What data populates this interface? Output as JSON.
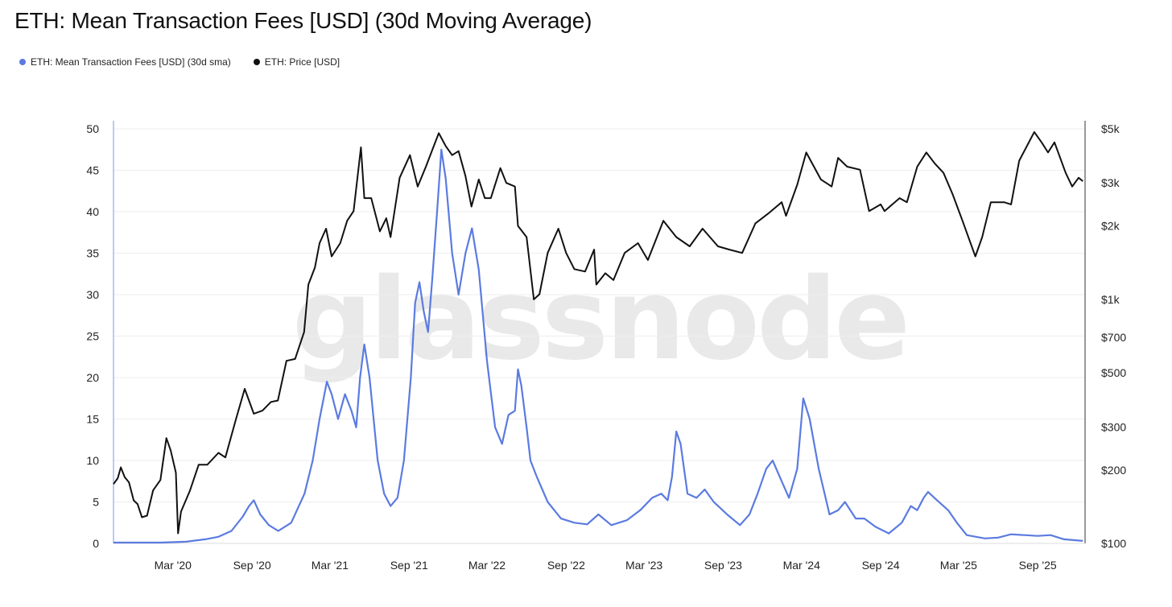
{
  "title": "ETH: Mean Transaction Fees [USD] (30d Moving Average)",
  "watermark": "glassnode",
  "legend": [
    {
      "label": "ETH: Mean Transaction Fees [USD] (30d sma)",
      "color": "#5b7be0"
    },
    {
      "label": "ETH: Price [USD]",
      "color": "#111111"
    }
  ],
  "chart_data": {
    "type": "line",
    "x_range": [
      "2019-10-15",
      "2025-12-20"
    ],
    "x_ticks": [
      {
        "date": "2020-03-01",
        "label": "Mar '20"
      },
      {
        "date": "2020-09-01",
        "label": "Sep '20"
      },
      {
        "date": "2021-03-01",
        "label": "Mar '21"
      },
      {
        "date": "2021-09-01",
        "label": "Sep '21"
      },
      {
        "date": "2022-03-01",
        "label": "Mar '22"
      },
      {
        "date": "2022-09-01",
        "label": "Sep '22"
      },
      {
        "date": "2023-03-01",
        "label": "Mar '23"
      },
      {
        "date": "2023-09-01",
        "label": "Sep '23"
      },
      {
        "date": "2024-03-01",
        "label": "Mar '24"
      },
      {
        "date": "2024-09-01",
        "label": "Sep '24"
      },
      {
        "date": "2025-03-01",
        "label": "Mar '25"
      },
      {
        "date": "2025-09-01",
        "label": "Sep '25"
      }
    ],
    "y_left": {
      "range": [
        0,
        50
      ],
      "ticks": [
        0,
        5,
        10,
        15,
        20,
        25,
        30,
        35,
        40,
        45,
        50
      ],
      "labels": [
        "0",
        "5",
        "10",
        "15",
        "20",
        "25",
        "30",
        "35",
        "40",
        "45",
        "50"
      ]
    },
    "y_right": {
      "scale": "log",
      "range": [
        100,
        5000
      ],
      "ticks": [
        100,
        200,
        300,
        500,
        700,
        1000,
        2000,
        3000,
        5000
      ],
      "labels": [
        "$100",
        "$200",
        "$300",
        "$500",
        "$700",
        "$1k",
        "$2k",
        "$3k",
        "$5k"
      ]
    },
    "grid": true,
    "legend_position": "top-left",
    "series": [
      {
        "name": "ETH: Mean Transaction Fees [USD] (30d sma)",
        "axis": "left",
        "color": "#5b7be0",
        "points": [
          [
            "2019-10-15",
            0.1
          ],
          [
            "2019-12-01",
            0.1
          ],
          [
            "2020-02-01",
            0.1
          ],
          [
            "2020-04-01",
            0.2
          ],
          [
            "2020-05-15",
            0.5
          ],
          [
            "2020-06-15",
            0.8
          ],
          [
            "2020-07-15",
            1.5
          ],
          [
            "2020-08-10",
            3.2
          ],
          [
            "2020-08-25",
            4.5
          ],
          [
            "2020-09-05",
            5.2
          ],
          [
            "2020-09-20",
            3.5
          ],
          [
            "2020-10-10",
            2.2
          ],
          [
            "2020-11-01",
            1.5
          ],
          [
            "2020-12-01",
            2.5
          ],
          [
            "2021-01-01",
            6.0
          ],
          [
            "2021-01-20",
            10.0
          ],
          [
            "2021-02-05",
            15.0
          ],
          [
            "2021-02-22",
            19.5
          ],
          [
            "2021-03-05",
            18.0
          ],
          [
            "2021-03-20",
            15.0
          ],
          [
            "2021-04-05",
            18.0
          ],
          [
            "2021-04-20",
            16.0
          ],
          [
            "2021-05-01",
            14.0
          ],
          [
            "2021-05-10",
            20.0
          ],
          [
            "2021-05-20",
            24.0
          ],
          [
            "2021-06-01",
            20.0
          ],
          [
            "2021-06-20",
            10.0
          ],
          [
            "2021-07-05",
            6.0
          ],
          [
            "2021-07-20",
            4.5
          ],
          [
            "2021-08-05",
            5.5
          ],
          [
            "2021-08-20",
            10.0
          ],
          [
            "2021-09-05",
            20.0
          ],
          [
            "2021-09-15",
            29.0
          ],
          [
            "2021-09-25",
            31.5
          ],
          [
            "2021-10-05",
            28.0
          ],
          [
            "2021-10-15",
            25.5
          ],
          [
            "2021-10-25",
            32.0
          ],
          [
            "2021-11-05",
            40.0
          ],
          [
            "2021-11-15",
            47.5
          ],
          [
            "2021-11-25",
            44.0
          ],
          [
            "2021-12-10",
            35.0
          ],
          [
            "2021-12-25",
            30.0
          ],
          [
            "2022-01-10",
            35.0
          ],
          [
            "2022-01-25",
            38.0
          ],
          [
            "2022-02-10",
            33.0
          ],
          [
            "2022-03-01",
            22.0
          ],
          [
            "2022-03-20",
            14.0
          ],
          [
            "2022-04-05",
            12.0
          ],
          [
            "2022-04-20",
            15.5
          ],
          [
            "2022-05-05",
            16.0
          ],
          [
            "2022-05-12",
            21.0
          ],
          [
            "2022-05-20",
            19.0
          ],
          [
            "2022-06-01",
            14.0
          ],
          [
            "2022-06-10",
            10.0
          ],
          [
            "2022-06-25",
            8.0
          ],
          [
            "2022-07-20",
            5.0
          ],
          [
            "2022-08-20",
            3.0
          ],
          [
            "2022-09-20",
            2.5
          ],
          [
            "2022-10-20",
            2.3
          ],
          [
            "2022-11-15",
            3.5
          ],
          [
            "2022-12-15",
            2.2
          ],
          [
            "2023-01-20",
            2.8
          ],
          [
            "2023-02-20",
            4.0
          ],
          [
            "2023-03-20",
            5.5
          ],
          [
            "2023-04-10",
            6.0
          ],
          [
            "2023-04-25",
            5.2
          ],
          [
            "2023-05-05",
            8.0
          ],
          [
            "2023-05-15",
            13.5
          ],
          [
            "2023-05-25",
            12.0
          ],
          [
            "2023-06-10",
            6.0
          ],
          [
            "2023-07-01",
            5.5
          ],
          [
            "2023-07-20",
            6.5
          ],
          [
            "2023-08-10",
            5.0
          ],
          [
            "2023-09-10",
            3.5
          ],
          [
            "2023-10-10",
            2.2
          ],
          [
            "2023-11-01",
            3.5
          ],
          [
            "2023-11-20",
            6.0
          ],
          [
            "2023-12-10",
            9.0
          ],
          [
            "2023-12-25",
            10.0
          ],
          [
            "2024-01-15",
            7.5
          ],
          [
            "2024-02-01",
            5.5
          ],
          [
            "2024-02-20",
            9.0
          ],
          [
            "2024-03-05",
            17.5
          ],
          [
            "2024-03-20",
            15.0
          ],
          [
            "2024-04-10",
            9.0
          ],
          [
            "2024-05-05",
            3.5
          ],
          [
            "2024-05-25",
            4.0
          ],
          [
            "2024-06-10",
            5.0
          ],
          [
            "2024-07-05",
            3.0
          ],
          [
            "2024-07-25",
            3.0
          ],
          [
            "2024-08-20",
            2.0
          ],
          [
            "2024-09-20",
            1.2
          ],
          [
            "2024-10-20",
            2.5
          ],
          [
            "2024-11-10",
            4.5
          ],
          [
            "2024-11-25",
            4.0
          ],
          [
            "2024-12-10",
            5.5
          ],
          [
            "2024-12-20",
            6.2
          ],
          [
            "2025-01-10",
            5.2
          ],
          [
            "2025-02-05",
            4.0
          ],
          [
            "2025-02-25",
            2.5
          ],
          [
            "2025-03-20",
            1.0
          ],
          [
            "2025-05-01",
            0.6
          ],
          [
            "2025-06-01",
            0.7
          ],
          [
            "2025-07-01",
            1.1
          ],
          [
            "2025-08-01",
            1.0
          ],
          [
            "2025-09-01",
            0.9
          ],
          [
            "2025-10-01",
            1.0
          ],
          [
            "2025-11-01",
            0.5
          ],
          [
            "2025-12-15",
            0.3
          ]
        ]
      },
      {
        "name": "ETH: Price [USD]",
        "axis": "right",
        "color": "#111111",
        "points": [
          [
            "2019-10-15",
            175
          ],
          [
            "2019-10-25",
            185
          ],
          [
            "2019-11-01",
            205
          ],
          [
            "2019-11-10",
            187
          ],
          [
            "2019-11-20",
            178
          ],
          [
            "2019-12-01",
            150
          ],
          [
            "2019-12-10",
            145
          ],
          [
            "2019-12-20",
            128
          ],
          [
            "2020-01-01",
            130
          ],
          [
            "2020-01-15",
            165
          ],
          [
            "2020-02-01",
            182
          ],
          [
            "2020-02-15",
            270
          ],
          [
            "2020-02-25",
            240
          ],
          [
            "2020-03-08",
            195
          ],
          [
            "2020-03-13",
            110
          ],
          [
            "2020-03-20",
            135
          ],
          [
            "2020-04-10",
            165
          ],
          [
            "2020-04-30",
            210
          ],
          [
            "2020-05-20",
            210
          ],
          [
            "2020-06-15",
            235
          ],
          [
            "2020-07-01",
            225
          ],
          [
            "2020-07-25",
            320
          ],
          [
            "2020-08-15",
            430
          ],
          [
            "2020-09-05",
            340
          ],
          [
            "2020-09-25",
            350
          ],
          [
            "2020-10-15",
            380
          ],
          [
            "2020-10-31",
            385
          ],
          [
            "2020-11-20",
            560
          ],
          [
            "2020-12-10",
            570
          ],
          [
            "2020-12-31",
            735
          ],
          [
            "2021-01-10",
            1150
          ],
          [
            "2021-01-25",
            1350
          ],
          [
            "2021-02-05",
            1700
          ],
          [
            "2021-02-20",
            1950
          ],
          [
            "2021-03-05",
            1500
          ],
          [
            "2021-03-25",
            1700
          ],
          [
            "2021-04-10",
            2100
          ],
          [
            "2021-04-25",
            2300
          ],
          [
            "2021-05-12",
            4200
          ],
          [
            "2021-05-20",
            2600
          ],
          [
            "2021-06-05",
            2600
          ],
          [
            "2021-06-25",
            1900
          ],
          [
            "2021-07-10",
            2150
          ],
          [
            "2021-07-20",
            1800
          ],
          [
            "2021-08-10",
            3150
          ],
          [
            "2021-09-03",
            3900
          ],
          [
            "2021-09-21",
            2900
          ],
          [
            "2021-10-10",
            3500
          ],
          [
            "2021-10-25",
            4100
          ],
          [
            "2021-11-09",
            4800
          ],
          [
            "2021-11-25",
            4250
          ],
          [
            "2021-12-10",
            3900
          ],
          [
            "2021-12-25",
            4050
          ],
          [
            "2022-01-10",
            3200
          ],
          [
            "2022-01-24",
            2400
          ],
          [
            "2022-02-10",
            3100
          ],
          [
            "2022-02-24",
            2600
          ],
          [
            "2022-03-10",
            2600
          ],
          [
            "2022-04-01",
            3450
          ],
          [
            "2022-04-15",
            3000
          ],
          [
            "2022-05-05",
            2900
          ],
          [
            "2022-05-12",
            2000
          ],
          [
            "2022-06-01",
            1800
          ],
          [
            "2022-06-18",
            1000
          ],
          [
            "2022-07-01",
            1050
          ],
          [
            "2022-07-20",
            1550
          ],
          [
            "2022-08-14",
            1950
          ],
          [
            "2022-09-01",
            1550
          ],
          [
            "2022-09-20",
            1330
          ],
          [
            "2022-10-15",
            1300
          ],
          [
            "2022-11-05",
            1600
          ],
          [
            "2022-11-10",
            1150
          ],
          [
            "2022-12-01",
            1280
          ],
          [
            "2022-12-20",
            1200
          ],
          [
            "2023-01-15",
            1550
          ],
          [
            "2023-02-15",
            1700
          ],
          [
            "2023-03-10",
            1450
          ],
          [
            "2023-04-15",
            2100
          ],
          [
            "2023-05-15",
            1800
          ],
          [
            "2023-06-15",
            1650
          ],
          [
            "2023-07-15",
            1950
          ],
          [
            "2023-08-20",
            1650
          ],
          [
            "2023-09-15",
            1600
          ],
          [
            "2023-10-15",
            1550
          ],
          [
            "2023-11-15",
            2050
          ],
          [
            "2023-12-15",
            2250
          ],
          [
            "2024-01-15",
            2500
          ],
          [
            "2024-01-25",
            2200
          ],
          [
            "2024-02-20",
            2950
          ],
          [
            "2024-03-12",
            4000
          ],
          [
            "2024-04-15",
            3100
          ],
          [
            "2024-05-10",
            2900
          ],
          [
            "2024-05-25",
            3800
          ],
          [
            "2024-06-15",
            3500
          ],
          [
            "2024-07-15",
            3400
          ],
          [
            "2024-08-05",
            2300
          ],
          [
            "2024-09-01",
            2450
          ],
          [
            "2024-09-10",
            2300
          ],
          [
            "2024-10-15",
            2600
          ],
          [
            "2024-11-01",
            2500
          ],
          [
            "2024-11-25",
            3500
          ],
          [
            "2024-12-16",
            4000
          ],
          [
            "2025-01-05",
            3600
          ],
          [
            "2025-01-25",
            3300
          ],
          [
            "2025-02-15",
            2700
          ],
          [
            "2025-03-10",
            2100
          ],
          [
            "2025-04-09",
            1500
          ],
          [
            "2025-04-25",
            1800
          ],
          [
            "2025-05-15",
            2500
          ],
          [
            "2025-06-15",
            2500
          ],
          [
            "2025-07-01",
            2450
          ],
          [
            "2025-07-20",
            3700
          ],
          [
            "2025-08-24",
            4850
          ],
          [
            "2025-09-10",
            4400
          ],
          [
            "2025-09-25",
            4000
          ],
          [
            "2025-10-10",
            4400
          ],
          [
            "2025-11-05",
            3300
          ],
          [
            "2025-11-20",
            2900
          ],
          [
            "2025-12-05",
            3150
          ],
          [
            "2025-12-15",
            3050
          ]
        ]
      }
    ]
  }
}
